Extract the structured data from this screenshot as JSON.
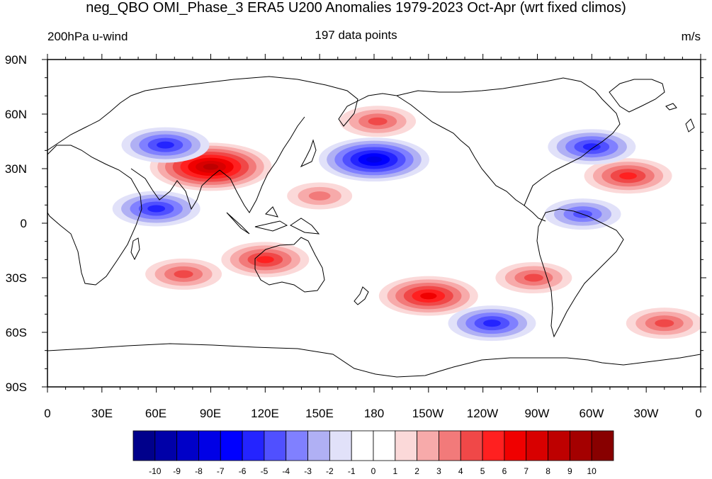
{
  "title": "neg_QBO OMI_Phase_3 ERA5 U200 Anomalies 1979-2023 Oct-Apr (wrt fixed climos)",
  "left_label": "200hPa u-wind",
  "center_label": "197 data points",
  "right_label": "m/s",
  "lat_labels": [
    "90N",
    "60N",
    "30N",
    "0",
    "30S",
    "60S",
    "90S"
  ],
  "lon_labels": [
    "0",
    "30E",
    "60E",
    "90E",
    "120E",
    "150E",
    "180",
    "150W",
    "120W",
    "90W",
    "60W",
    "30W",
    "0"
  ],
  "colorbar": {
    "labels": [
      "-10",
      "-9",
      "-8",
      "-7",
      "-6",
      "-5",
      "-4",
      "-3",
      "-2",
      "-1",
      "0",
      "1",
      "2",
      "3",
      "4",
      "5",
      "6",
      "7",
      "8",
      "9",
      "10"
    ],
    "colors": [
      "#00008b",
      "#0000a8",
      "#0000c8",
      "#0000e6",
      "#0000ff",
      "#2424ff",
      "#5050ff",
      "#8080ff",
      "#b0b0f4",
      "#e1e1f9",
      "#ffffff",
      "#ffffff",
      "#fbd9d9",
      "#f7aaaa",
      "#f27a7a",
      "#f04848",
      "#ff2020",
      "#f00000",
      "#d80000",
      "#be0000",
      "#a40000",
      "#880000"
    ]
  },
  "chart_data": {
    "type": "heatmap",
    "variable": "U200 anomaly",
    "units": "m/s",
    "lon_range": [
      0,
      360
    ],
    "lat_range": [
      -90,
      90
    ],
    "contour_levels": [
      -10,
      -9,
      -8,
      -7,
      -6,
      -5,
      -4,
      -3,
      -2,
      -1,
      0,
      1,
      2,
      3,
      4,
      5,
      6,
      7,
      8,
      9,
      10
    ],
    "features": [
      {
        "lon": 90,
        "lat": 31,
        "peak": 8,
        "sign": "positive"
      },
      {
        "lon": 180,
        "lat": 35,
        "peak": -7,
        "sign": "negative"
      },
      {
        "lon": 65,
        "lat": 43,
        "peak": -5,
        "sign": "negative"
      },
      {
        "lon": 60,
        "lat": 8,
        "peak": -5,
        "sign": "negative"
      },
      {
        "lon": 150,
        "lat": 15,
        "peak": 3,
        "sign": "positive"
      },
      {
        "lon": 120,
        "lat": -20,
        "peak": 5,
        "sign": "positive"
      },
      {
        "lon": 75,
        "lat": -28,
        "peak": 4,
        "sign": "positive"
      },
      {
        "lon": 210,
        "lat": -40,
        "peak": 6,
        "sign": "positive"
      },
      {
        "lon": 245,
        "lat": -55,
        "peak": -5,
        "sign": "negative"
      },
      {
        "lon": 320,
        "lat": 26,
        "peak": 5,
        "sign": "positive"
      },
      {
        "lon": 300,
        "lat": 42,
        "peak": -5,
        "sign": "negative"
      },
      {
        "lon": 182,
        "lat": 56,
        "peak": 4,
        "sign": "positive"
      },
      {
        "lon": 295,
        "lat": 5,
        "peak": -4,
        "sign": "negative"
      },
      {
        "lon": 340,
        "lat": -55,
        "peak": 4,
        "sign": "positive"
      },
      {
        "lon": 268,
        "lat": -30,
        "peak": 4,
        "sign": "positive"
      }
    ]
  }
}
